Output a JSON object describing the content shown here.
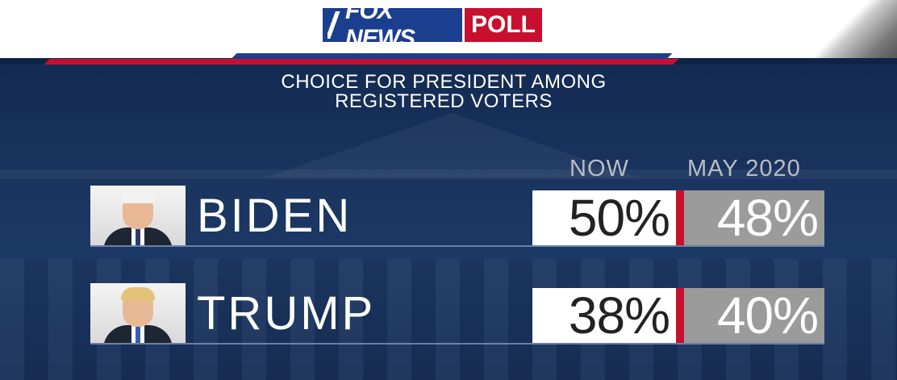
{
  "header": {
    "logo_text_fox": "FOX NEWS",
    "logo_text_poll": "POLL",
    "brand_blue": "#1b3f8f",
    "brand_red": "#c8102e"
  },
  "chart_data": {
    "type": "table",
    "title": "CHOICE FOR PRESIDENT AMONG REGISTERED VOTERS",
    "title_lines": [
      "CHOICE FOR PRESIDENT AMONG",
      "REGISTERED VOTERS"
    ],
    "columns": [
      "NOW",
      "MAY 2020"
    ],
    "rows": [
      {
        "name": "BIDEN",
        "values": [
          "50%",
          "48%"
        ]
      },
      {
        "name": "TRUMP",
        "values": [
          "38%",
          "40%"
        ]
      }
    ]
  }
}
